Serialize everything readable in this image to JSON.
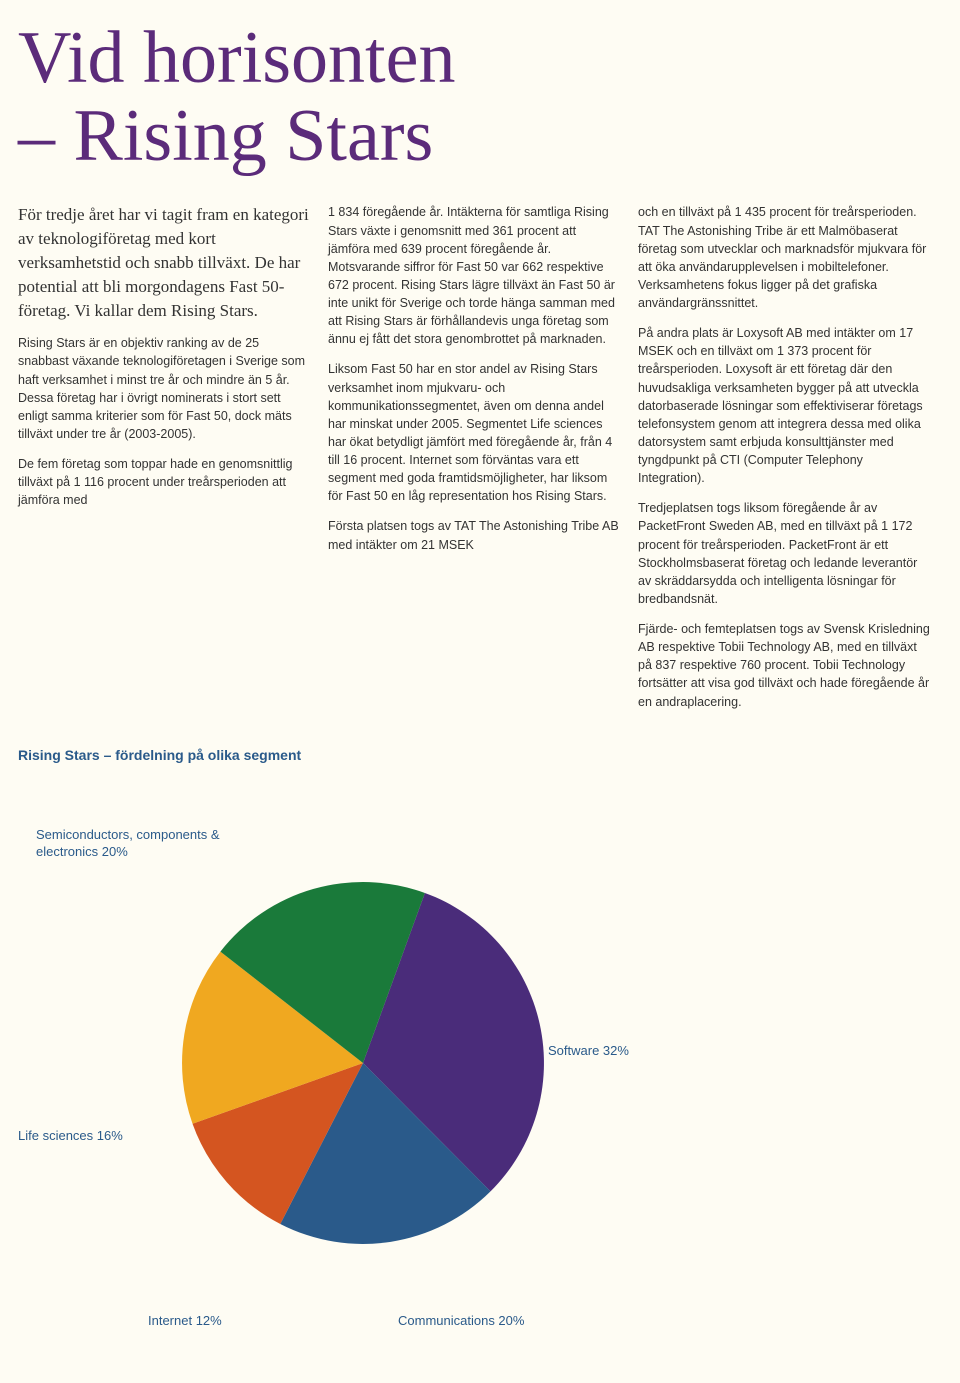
{
  "title_line1": "Vid horisonten",
  "title_line2": "– Rising Stars",
  "intro": "För tredje året har vi tagit fram en kategori av teknologiföretag med kort verksamhetstid och snabb tillväxt. De har potential att bli morgondagens Fast 50-företag. Vi kallar dem Rising Stars.",
  "col1_p1": "Rising Stars är en objektiv ranking av de 25 snabbast växande teknologiföretagen i Sverige som haft verksamhet i minst tre år och mindre än 5 år. Dessa företag har i övrigt nominerats i stort sett enligt samma kriterier som för Fast 50, dock mäts tillväxt under tre år (2003-2005).",
  "col1_p2": "De fem företag som toppar hade en genomsnittlig tillväxt på 1 116 procent under treårsperioden att jämföra med",
  "col2_p1": "1 834 föregående år. Intäkterna för samtliga Rising Stars växte i genomsnitt med 361 procent att jämföra med 639 procent föregående år. Motsvarande siffror för Fast 50 var 662 respektive 672 procent. Rising Stars lägre tillväxt än Fast 50 är inte unikt för Sverige och torde hänga samman med att Rising Stars är förhållandevis unga företag som ännu ej fått det stora genombrottet på marknaden.",
  "col2_p2": "Liksom Fast 50 har en stor andel av Rising Stars verksamhet inom mjukvaru- och kommunikationssegmentet, även om denna andel har minskat under 2005. Segmentet Life sciences har ökat betydligt jämfört med föregående år, från 4 till 16 procent. Internet som förväntas vara ett segment med goda framtidsmöjligheter, har liksom för Fast 50 en låg representation hos Rising Stars.",
  "col2_p3": "Första platsen togs av TAT The Astonishing Tribe AB med intäkter om 21 MSEK",
  "col3_p1": "och en tillväxt på 1 435 procent för treårsperioden. TAT The Astonishing Tribe är ett Malmöbaserat företag som utvecklar och marknadsför mjukvara för att öka användarupplevelsen i mobiltelefoner. Verksamhetens fokus ligger på det grafiska användargränssnittet.",
  "col3_p2": "På andra plats är Loxysoft AB med intäkter om 17 MSEK och en tillväxt om 1 373 procent för treårsperioden. Loxysoft är ett företag där den huvudsakliga verksamheten bygger på att utveckla datorbaserade lösningar som effektiviserar företags telefonsystem genom att integrera dessa med olika datorsystem samt erbjuda konsulttjänster med tyngdpunkt på CTI (Computer Telephony Integration).",
  "col3_p3": "Tredjeplatsen togs liksom föregående år av PacketFront Sweden AB, med en tillväxt på 1 172 procent för treårsperioden. PacketFront är ett Stockholmsbaserat företag och ledande leverantör av skräddarsydda och intelligenta lösningar för bredbandsnät.",
  "col3_p4": "Fjärde- och femteplatsen togs av Svensk Krisledning AB respektive Tobii Technology AB, med en tillväxt på 837 respektive 760 procent. Tobii Technology fortsätter att visa god tillväxt och hade föregående år en andraplacering.",
  "chart": {
    "title": "Rising Stars – fördelning på olika segment",
    "type": "pie",
    "slices": [
      {
        "label": "Software 32%",
        "value": 32,
        "color": "#4a2c7a"
      },
      {
        "label": "Communications 20%",
        "value": 20,
        "color": "#2a5a8a"
      },
      {
        "label": "Internet 12%",
        "value": 12,
        "color": "#d45520"
      },
      {
        "label": "Life sciences 16%",
        "value": 16,
        "color": "#f0a820"
      },
      {
        "label": "Semiconductors, components & electronics 20%",
        "value": 20,
        "color": "#1a7a3a"
      }
    ],
    "start_angle_deg": -70,
    "background_color": "#fefcf3",
    "label_color": "#2a5a8a",
    "label_fontsize": 13
  }
}
